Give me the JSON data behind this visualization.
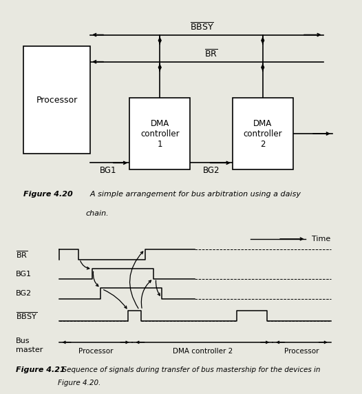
{
  "bg_color": "#e8e8e0",
  "processor_label": "Processor",
  "dma1_label": "DMA\ncontroller\n1",
  "dma2_label": "DMA\ncontroller\n2",
  "bg1_label": "BG1",
  "bg2_label": "BG2",
  "bbsy_top": "BBSY",
  "br_top": "BR",
  "time_label": "Time",
  "fig420_bold": "Figure 4.20",
  "fig420_text": "  A simple arrangement for bus arbitration using a daisy",
  "fig420_text2": "chain.",
  "fig421_bold": "Figure 4.21",
  "fig421_text": "  Sequence of signals during transfer of bus mastership for the devices in",
  "fig421_text2": "Figure 4.20.",
  "seg_labels": [
    "Processor",
    "DMA controller 2",
    "Processor"
  ],
  "sig_label_br": "BR",
  "sig_label_bg1": "BG1",
  "sig_label_bg2": "BG2",
  "sig_label_bbsy": "BBSY"
}
